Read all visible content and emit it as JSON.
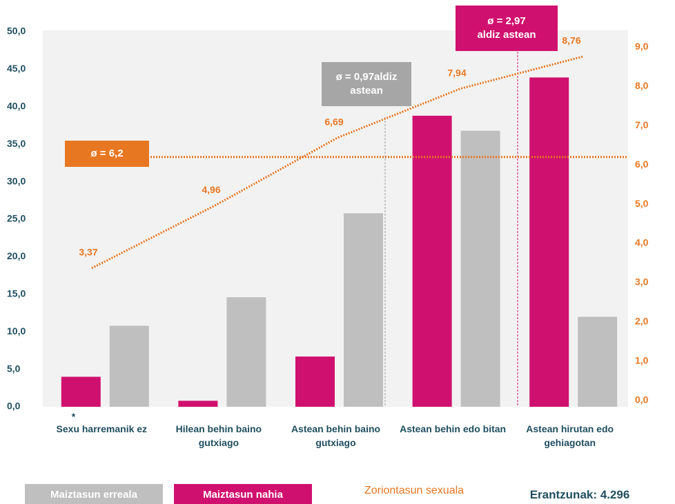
{
  "chart_data": {
    "type": "bar",
    "categories": [
      "Sexu harremanik ez",
      "Hilean behin baino gutxiago",
      "Astean behin baino gutxiago",
      "Astean behin edo bitan",
      "Astean hirutan edo gehiagotan"
    ],
    "series": [
      {
        "name": "Maiztasun erreala",
        "color": "#bfbfbf",
        "values": [
          10.8,
          14.6,
          25.8,
          36.8,
          12.0
        ]
      },
      {
        "name": "Maiztasun nahia",
        "color": "#d0106f",
        "values": [
          4.0,
          0.8,
          6.7,
          38.8,
          43.9
        ]
      },
      {
        "name": "Zoriontasun sexuala",
        "color": "#e87722",
        "type": "line",
        "axis": "y2",
        "values": [
          3.37,
          4.96,
          6.69,
          7.94,
          8.76
        ],
        "value_labels": [
          "3,37",
          "4,96",
          "6,69",
          "7,94",
          "8,76"
        ]
      }
    ],
    "ylim": [
      0,
      50
    ],
    "yticks": [
      {
        "value": 0,
        "label": "0,0"
      },
      {
        "value": 5,
        "label": "5,0"
      },
      {
        "value": 10,
        "label": "10,0"
      },
      {
        "value": 15,
        "label": "15,0"
      },
      {
        "value": 20,
        "label": "20,0"
      },
      {
        "value": 25,
        "label": "25,0"
      },
      {
        "value": 30,
        "label": "30,0"
      },
      {
        "value": 35,
        "label": "35,0"
      },
      {
        "value": 40,
        "label": "40,0"
      },
      {
        "value": 45,
        "label": "45,0"
      },
      {
        "value": 50,
        "label": "50,0"
      }
    ],
    "y2lim": [
      -0.16,
      9.39
    ],
    "y2ticks": [
      {
        "value": 0,
        "label": "0,0"
      },
      {
        "value": 1,
        "label": "1,0"
      },
      {
        "value": 2,
        "label": "2,0"
      },
      {
        "value": 3,
        "label": "3,0"
      },
      {
        "value": 4,
        "label": "4,0"
      },
      {
        "value": 5,
        "label": "5,0"
      },
      {
        "value": 6,
        "label": "6,0"
      },
      {
        "value": 7,
        "label": "7,0"
      },
      {
        "value": 8,
        "label": "8,0"
      },
      {
        "value": 9,
        "label": "9,0"
      }
    ],
    "annotations": [
      {
        "text": "ø = 6,2",
        "value": 6.2
      },
      {
        "lines": [
          "ø = 0,97aldiz",
          "astean"
        ]
      },
      {
        "lines": [
          "ø = 2,97",
          "aldiz astean"
        ]
      }
    ],
    "footnote": "*",
    "note": "Erantzunak: 4.296"
  }
}
